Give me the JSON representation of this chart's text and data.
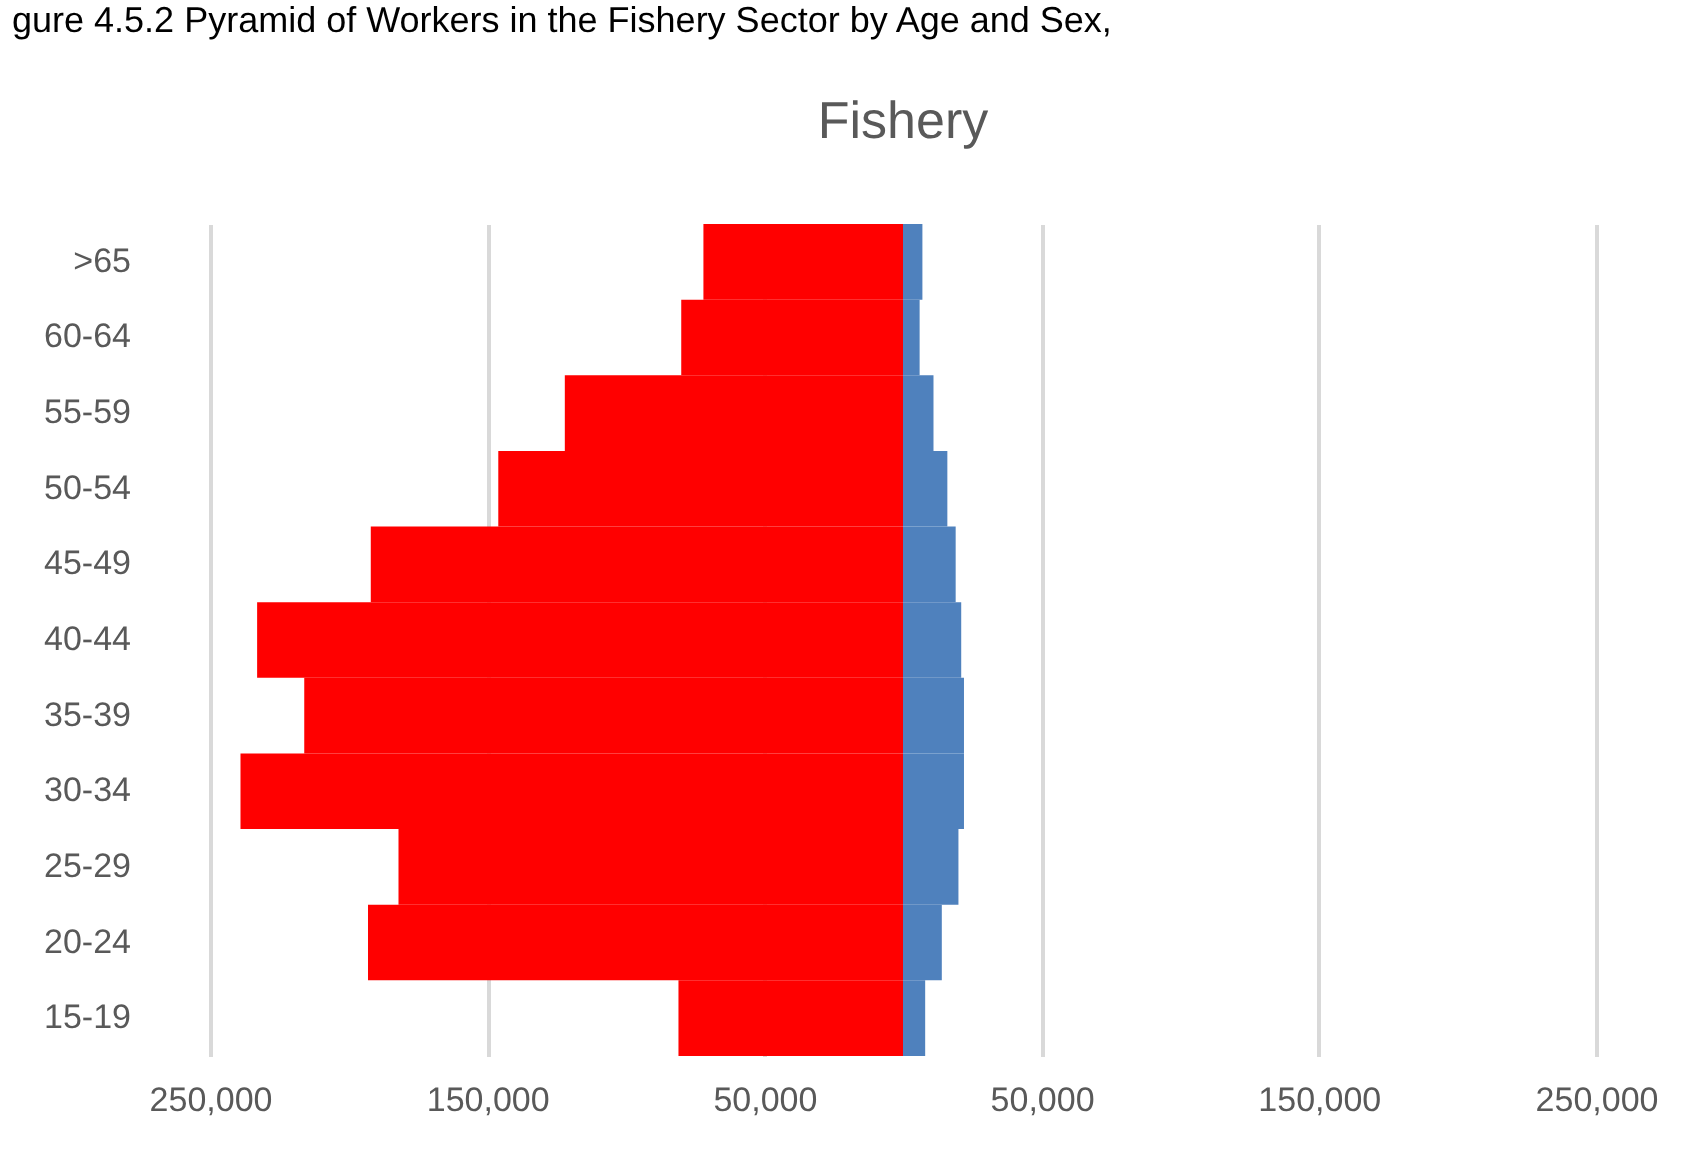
{
  "chart_data": {
    "type": "bar",
    "orientation": "horizontal",
    "stacked": true,
    "title": "Fishery",
    "annotations": [
      "gure 4.5.2 Pyramid of Workers in the Fishery Sector by Age and Sex,"
    ],
    "categories": [
      ">65",
      "60-64",
      "55-59",
      "50-54",
      "45-49",
      "40-44",
      "35-39",
      "30-34",
      "25-29",
      "20-24",
      "15-19"
    ],
    "series": [
      {
        "color": "#ff0000",
        "values": [
          -72000,
          -80000,
          -122000,
          -146000,
          -192000,
          -233000,
          -216000,
          -239000,
          -182000,
          -193000,
          -81000
        ]
      },
      {
        "color": "#4f81bd",
        "values": [
          7000,
          6000,
          11000,
          16000,
          19000,
          21000,
          22000,
          22000,
          20000,
          14000,
          8000
        ]
      }
    ],
    "xlim": [
      -250000,
      250000
    ],
    "xticks": [
      {
        "value": -250000,
        "label": "250,000"
      },
      {
        "value": -150000,
        "label": "150,000"
      },
      {
        "value": -50000,
        "label": "50,000"
      },
      {
        "value": 50000,
        "label": "50,000"
      },
      {
        "value": 150000,
        "label": "150,000"
      },
      {
        "value": 250000,
        "label": "250,000"
      }
    ],
    "grid": "x"
  }
}
